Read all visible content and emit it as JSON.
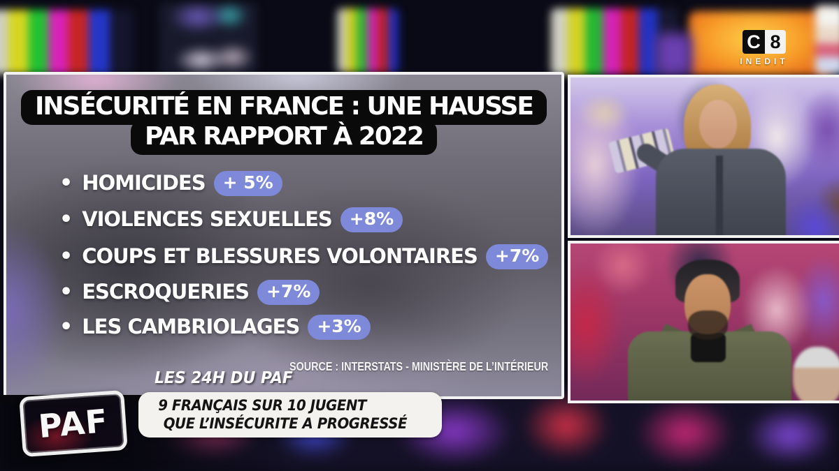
{
  "channel": {
    "letter": "C",
    "digit": "8",
    "tagline": "INEDIT"
  },
  "infographic": {
    "title_line1": "INSÉCURITÉ EN FRANCE : UNE HAUSSE",
    "title_line2": "PAR RAPPORT À 2022",
    "bullet": "•",
    "items": [
      {
        "label": "HOMICIDES",
        "value": "+ 5%"
      },
      {
        "label": "VIOLENCES SEXUELLES",
        "value": "+8%"
      },
      {
        "label": "COUPS ET BLESSURES VOLONTAIRES",
        "value": "+7%"
      },
      {
        "label": "ESCROQUERIES",
        "value": "+7%"
      },
      {
        "label": "LES CAMBRIOLAGES",
        "value": "+3%"
      }
    ],
    "source": "SOURCE : INTERSTATS - MINISTÈRE DE L’INTÉRIEUR",
    "program_label": "LES 24H DU PAF",
    "badge_color": "#7e89d9"
  },
  "banner": {
    "line1": "9 FRANÇAIS SUR 10 JUGENT",
    "line2": "QUE L’INSÉCURITE A PROGRESSÉ"
  },
  "logo": {
    "text": "PAF"
  }
}
